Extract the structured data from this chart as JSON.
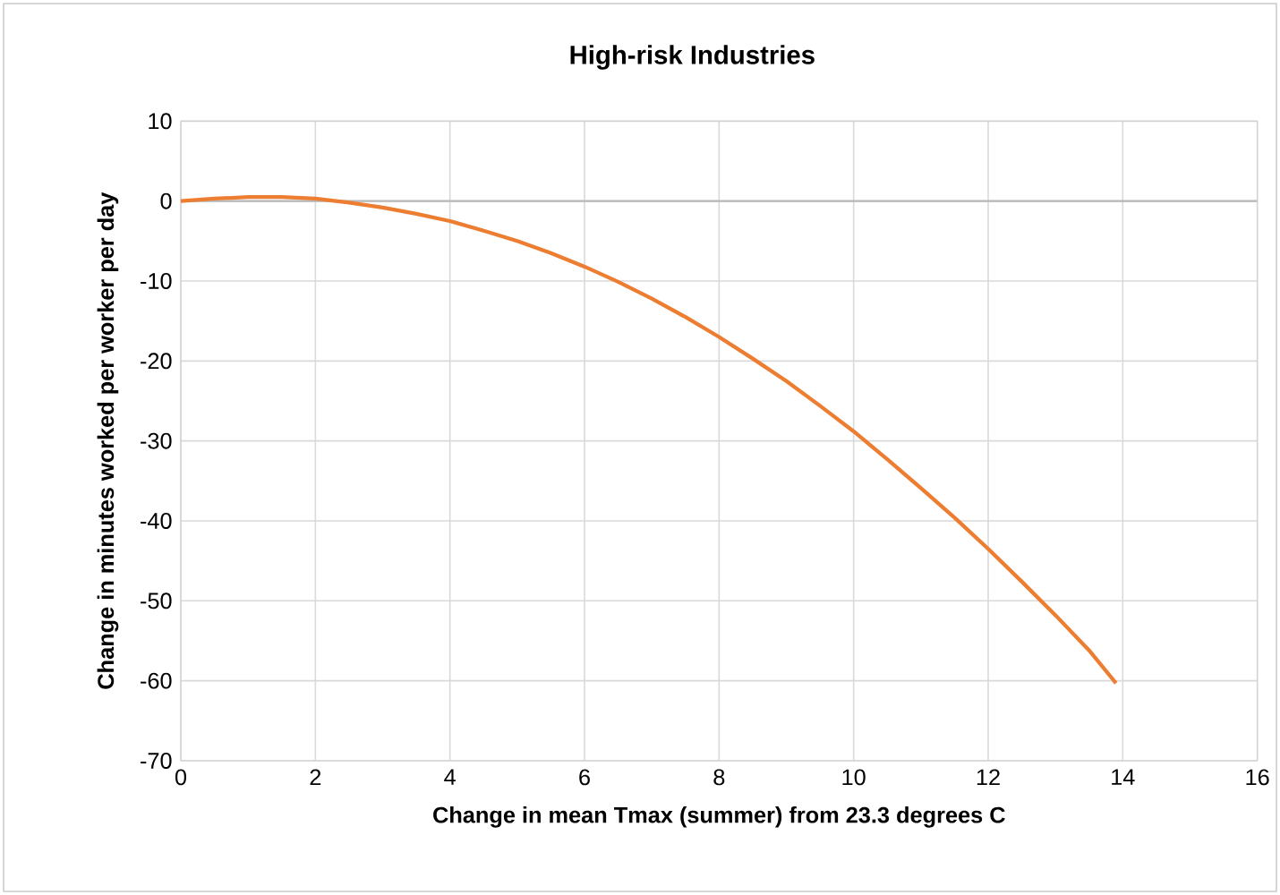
{
  "chart_data": {
    "type": "line",
    "title": "High-risk Industries",
    "xlabel": "Change in mean Tmax (summer) from 23.3 degrees C",
    "ylabel": "Change in minutes worked per worker per day",
    "x": [
      0,
      0.5,
      1,
      1.5,
      2,
      2.5,
      3,
      3.5,
      4,
      4.5,
      5,
      5.5,
      6,
      6.5,
      7,
      7.5,
      8,
      8.5,
      9,
      9.5,
      10,
      10.5,
      11,
      11.5,
      12,
      12.5,
      13,
      13.5,
      13.9
    ],
    "series": [
      {
        "color": "#ed7d31",
        "values": [
          0,
          0.3,
          0.5,
          0.5,
          0.3,
          -0.2,
          -0.8,
          -1.6,
          -2.5,
          -3.7,
          -5,
          -6.5,
          -8.2,
          -10.1,
          -12.2,
          -14.5,
          -17,
          -19.7,
          -22.5,
          -25.6,
          -28.8,
          -32.3,
          -35.9,
          -39.6,
          -43.5,
          -47.6,
          -51.8,
          -56.2,
          -60.3
        ]
      }
    ],
    "xlim": [
      0,
      16
    ],
    "ylim": [
      -70,
      10
    ],
    "xticks": [
      0,
      2,
      4,
      6,
      8,
      10,
      12,
      14,
      16
    ],
    "yticks": [
      -70,
      -60,
      -50,
      -40,
      -30,
      -20,
      -10,
      0,
      10
    ],
    "grid": true,
    "legend": false,
    "marker": "none",
    "line_style": "solid"
  }
}
